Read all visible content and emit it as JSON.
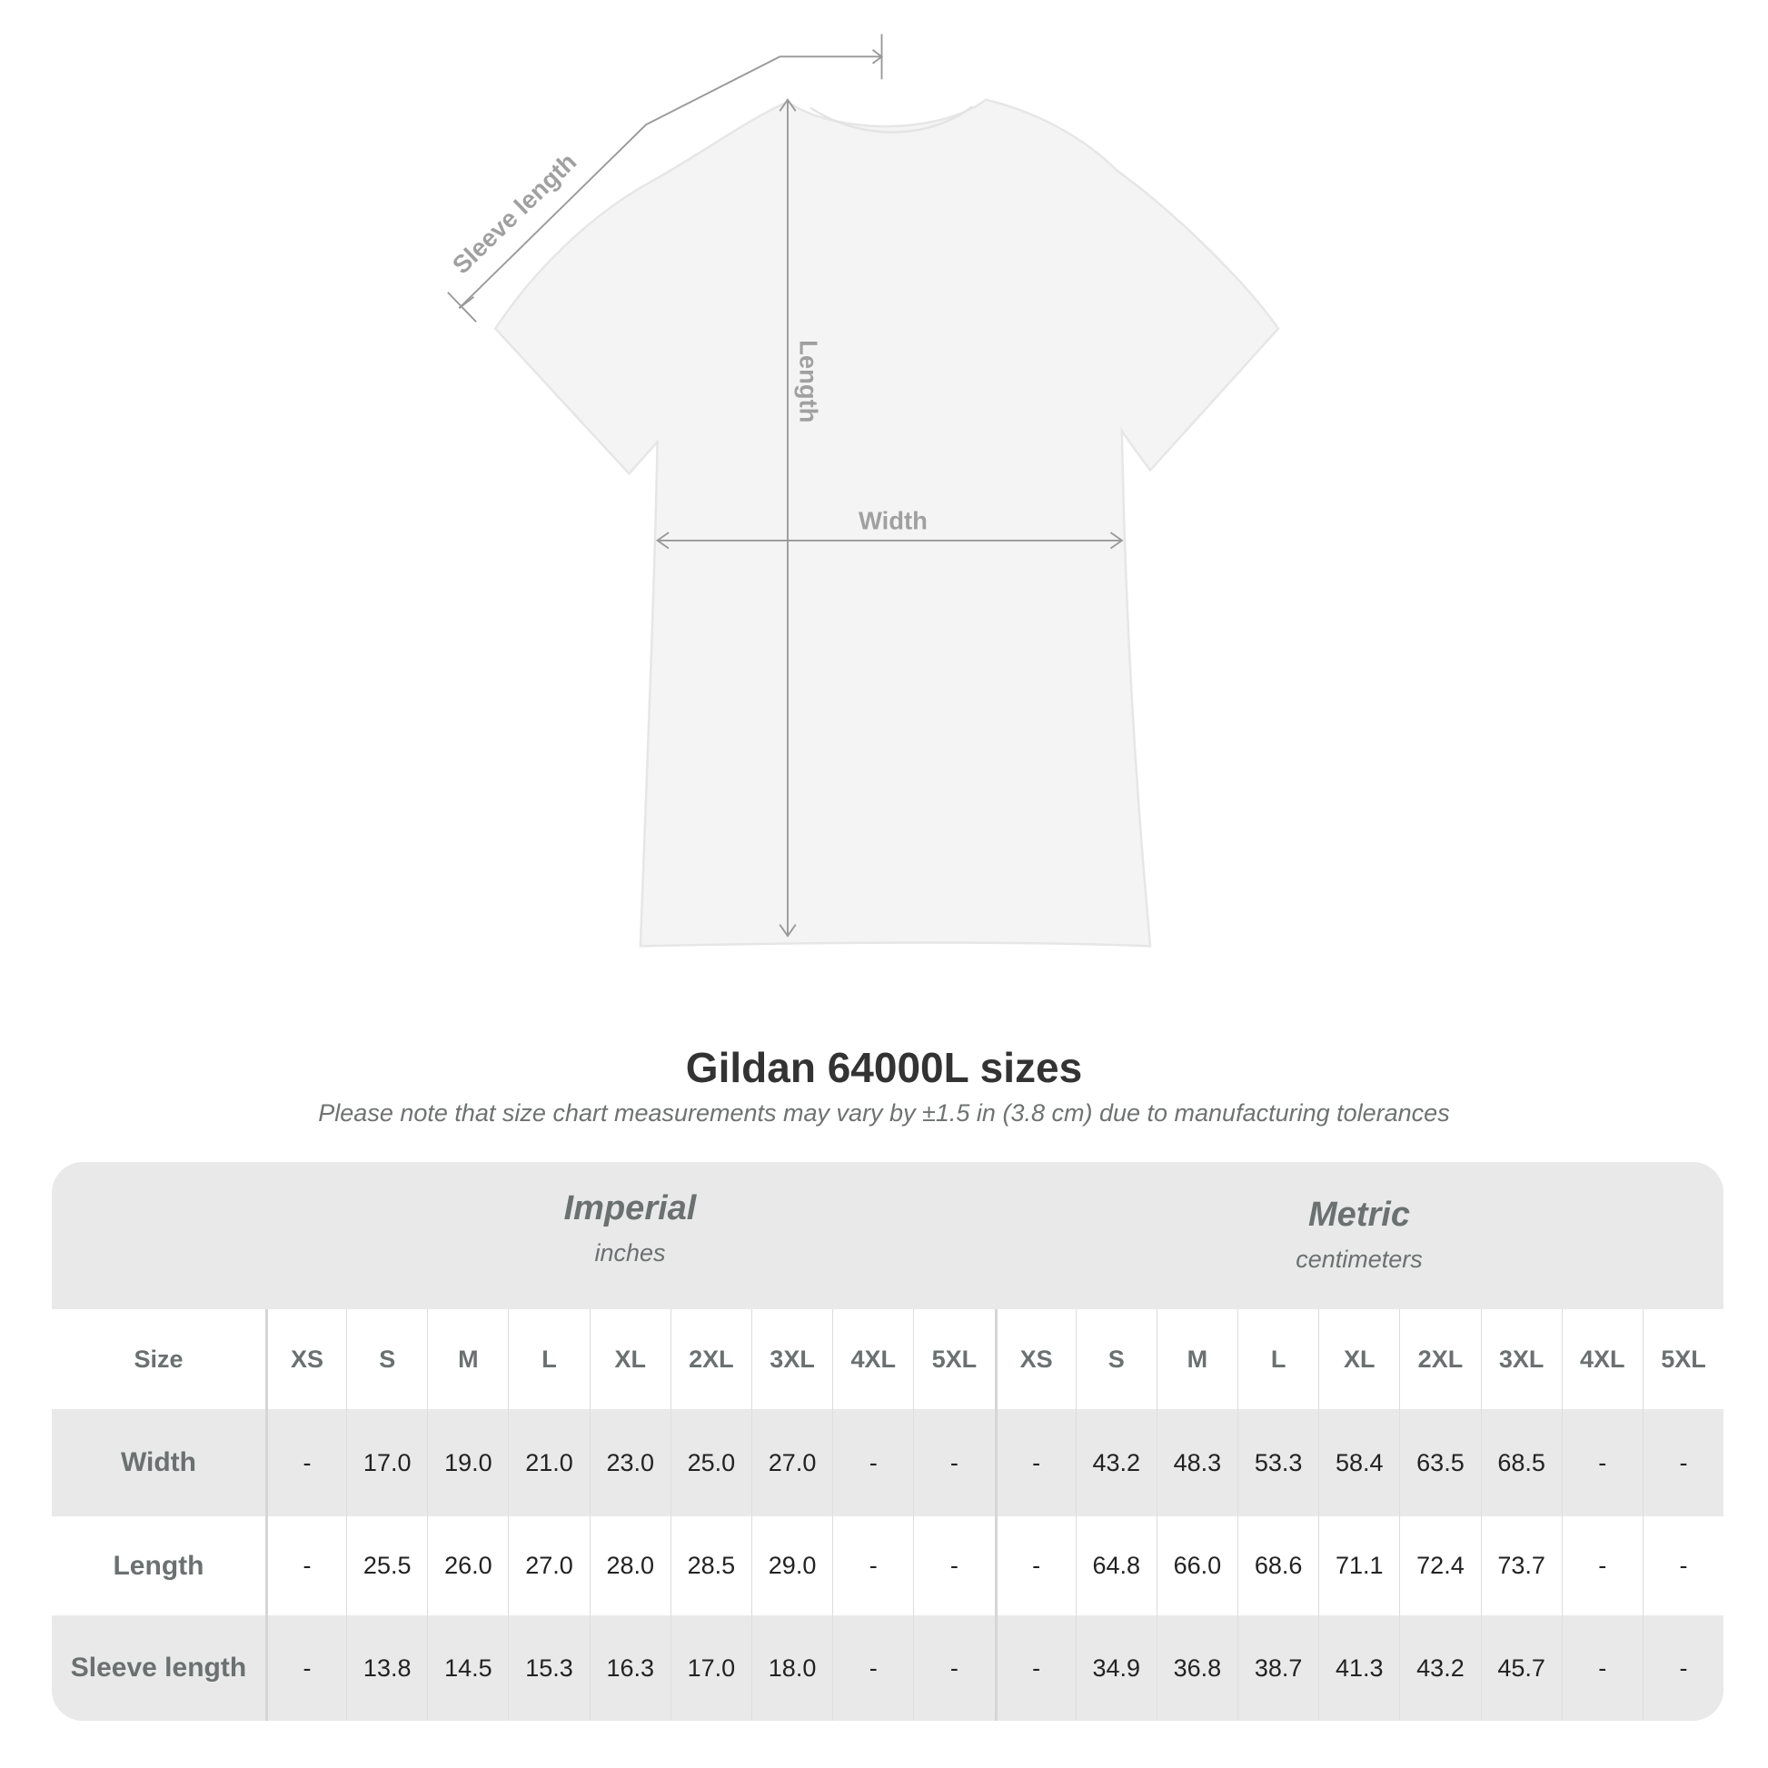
{
  "diagram": {
    "labels": {
      "sleeve": "Sleeve length",
      "length": "Length",
      "width": "Width"
    }
  },
  "title": "Gildan 64000L sizes",
  "subtitle": "Please note that size chart measurements may vary by ±1.5 in (3.8 cm) due to manufacturing tolerances",
  "table": {
    "imperial": {
      "title": "Imperial",
      "unit": "inches"
    },
    "metric": {
      "title": "Metric",
      "unit": "centimeters"
    },
    "size_label": "Size",
    "sizes": [
      "XS",
      "S",
      "M",
      "L",
      "XL",
      "2XL",
      "3XL",
      "4XL",
      "5XL"
    ],
    "rows": [
      {
        "label": "Width",
        "imperial": [
          "-",
          "17.0",
          "19.0",
          "21.0",
          "23.0",
          "25.0",
          "27.0",
          "-",
          "-"
        ],
        "metric": [
          "-",
          "43.2",
          "48.3",
          "53.3",
          "58.4",
          "63.5",
          "68.5",
          "-",
          "-"
        ]
      },
      {
        "label": "Length",
        "imperial": [
          "-",
          "25.5",
          "26.0",
          "27.0",
          "28.0",
          "28.5",
          "29.0",
          "-",
          "-"
        ],
        "metric": [
          "-",
          "64.8",
          "66.0",
          "68.6",
          "71.1",
          "72.4",
          "73.7",
          "-",
          "-"
        ]
      },
      {
        "label": "Sleeve length",
        "imperial": [
          "-",
          "13.8",
          "14.5",
          "15.3",
          "16.3",
          "17.0",
          "18.0",
          "-",
          "-"
        ],
        "metric": [
          "-",
          "34.9",
          "36.8",
          "38.7",
          "41.3",
          "43.2",
          "45.7",
          "-",
          "-"
        ]
      }
    ]
  }
}
